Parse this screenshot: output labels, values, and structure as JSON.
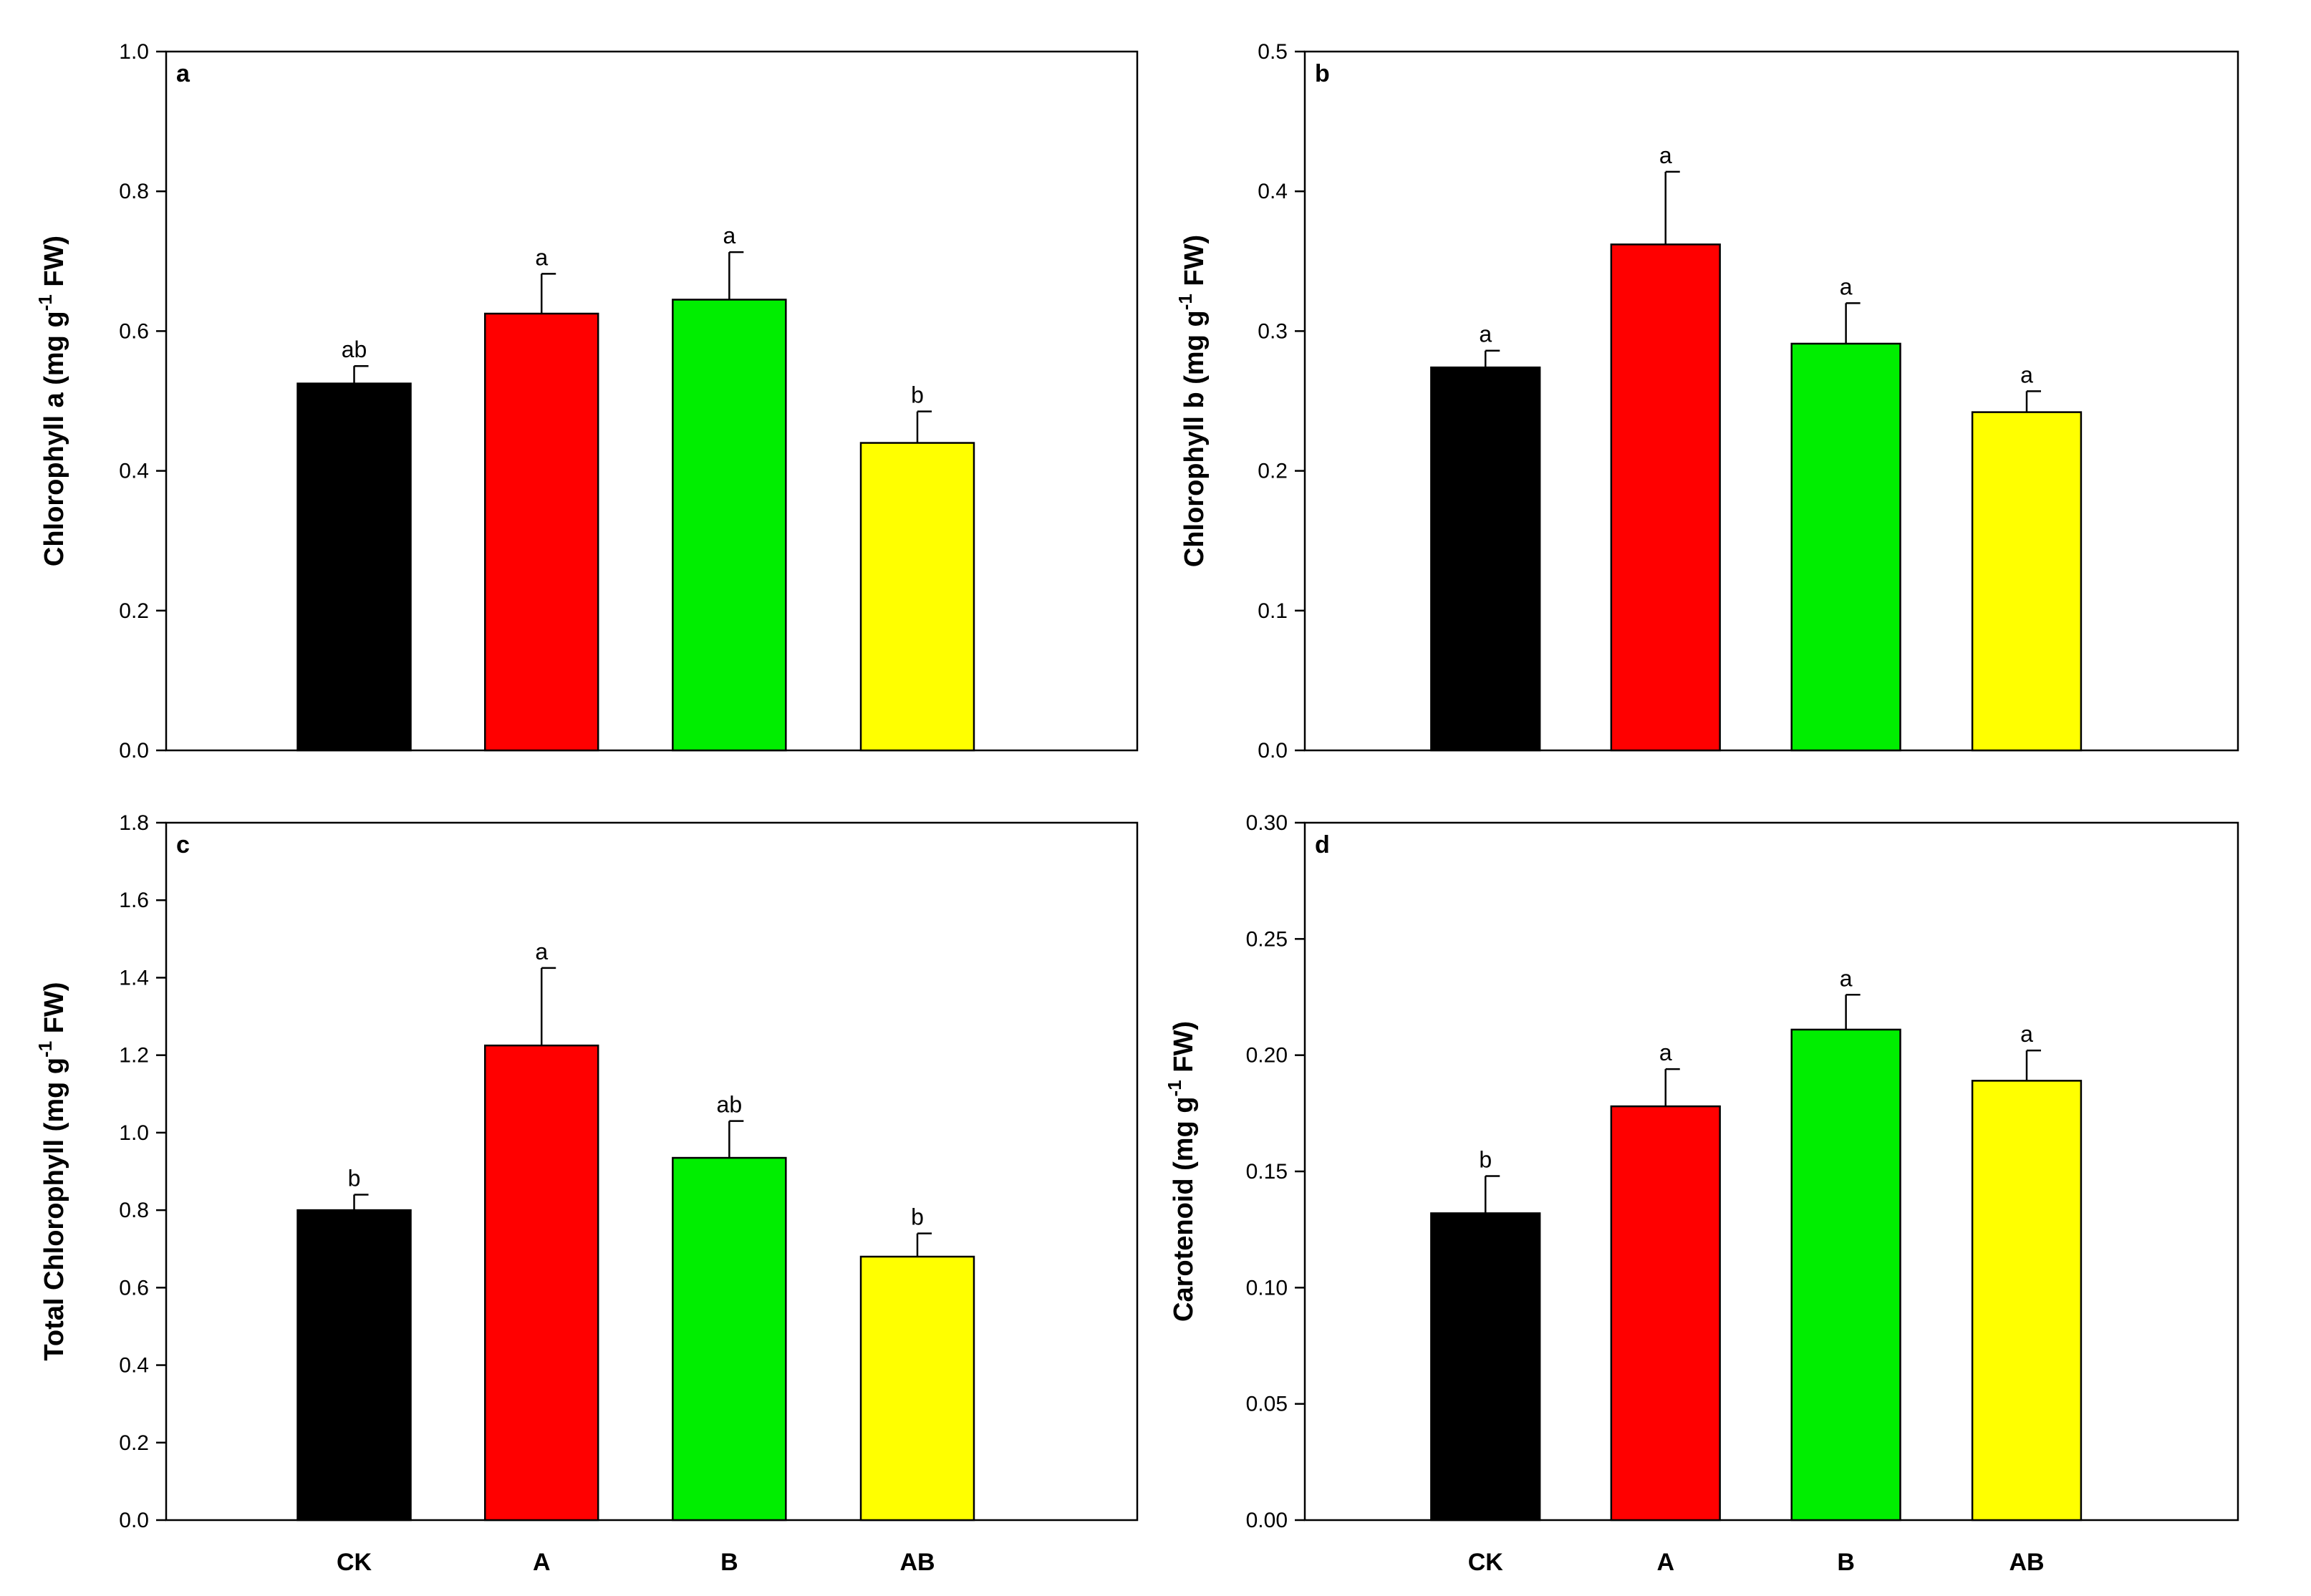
{
  "colors": {
    "CK": "#000000",
    "A": "#ff0000",
    "B": "#00ee00",
    "AB": "#ffff00"
  },
  "chart_data": [
    {
      "type": "bar",
      "panel": "a",
      "ylabel_main": "Chlorophyll a (mg g",
      "ylabel_sup": "-1",
      "ylabel_tail": " FW)",
      "categories": [
        "CK",
        "A",
        "B",
        "AB"
      ],
      "values": [
        0.525,
        0.625,
        0.645,
        0.44
      ],
      "errors": [
        0.025,
        0.057,
        0.068,
        0.045
      ],
      "significance": [
        "ab",
        "a",
        "a",
        "b"
      ],
      "ylim": [
        0,
        1.0
      ],
      "yticks": [
        0.0,
        0.2,
        0.4,
        0.6,
        0.8,
        1.0
      ],
      "ytick_labels": [
        "0.0",
        "0.2",
        "0.4",
        "0.6",
        "0.8",
        "1.0"
      ],
      "show_category_labels": false
    },
    {
      "type": "bar",
      "panel": "b",
      "ylabel_main": "Chlorophyll b (mg g",
      "ylabel_sup": "-1",
      "ylabel_tail": " FW)",
      "categories": [
        "CK",
        "A",
        "B",
        "AB"
      ],
      "values": [
        0.274,
        0.362,
        0.291,
        0.242
      ],
      "errors": [
        0.012,
        0.052,
        0.029,
        0.015
      ],
      "significance": [
        "a",
        "a",
        "a",
        "a"
      ],
      "ylim": [
        0,
        0.5
      ],
      "yticks": [
        0.0,
        0.1,
        0.2,
        0.3,
        0.4,
        0.5
      ],
      "ytick_labels": [
        "0.0",
        "0.1",
        "0.2",
        "0.3",
        "0.4",
        "0.5"
      ],
      "show_category_labels": false
    },
    {
      "type": "bar",
      "panel": "c",
      "ylabel_main": "Total Chlorophyll (mg g",
      "ylabel_sup": "-1",
      "ylabel_tail": " FW)",
      "categories": [
        "CK",
        "A",
        "B",
        "AB"
      ],
      "values": [
        0.8,
        1.225,
        0.935,
        0.68
      ],
      "errors": [
        0.04,
        0.2,
        0.095,
        0.06
      ],
      "significance": [
        "b",
        "a",
        "ab",
        "b"
      ],
      "ylim": [
        0,
        1.8
      ],
      "yticks": [
        0.0,
        0.2,
        0.4,
        0.6,
        0.8,
        1.0,
        1.2,
        1.4,
        1.6,
        1.8
      ],
      "ytick_labels": [
        "0.0",
        "0.2",
        "0.4",
        "0.6",
        "0.8",
        "1.0",
        "1.2",
        "1.4",
        "1.6",
        "1.8"
      ],
      "show_category_labels": true
    },
    {
      "type": "bar",
      "panel": "d",
      "ylabel_main": "Carotenoid (mg g",
      "ylabel_sup": "-1",
      "ylabel_tail": " FW)",
      "categories": [
        "CK",
        "A",
        "B",
        "AB"
      ],
      "values": [
        0.132,
        0.178,
        0.211,
        0.189
      ],
      "errors": [
        0.016,
        0.016,
        0.015,
        0.013
      ],
      "significance": [
        "b",
        "a",
        "a",
        "a"
      ],
      "ylim": [
        0,
        0.3
      ],
      "yticks": [
        0.0,
        0.05,
        0.1,
        0.15,
        0.2,
        0.25,
        0.3
      ],
      "ytick_labels": [
        "0.00",
        "0.05",
        "0.10",
        "0.15",
        "0.20",
        "0.25",
        "0.30"
      ],
      "show_category_labels": true
    }
  ]
}
